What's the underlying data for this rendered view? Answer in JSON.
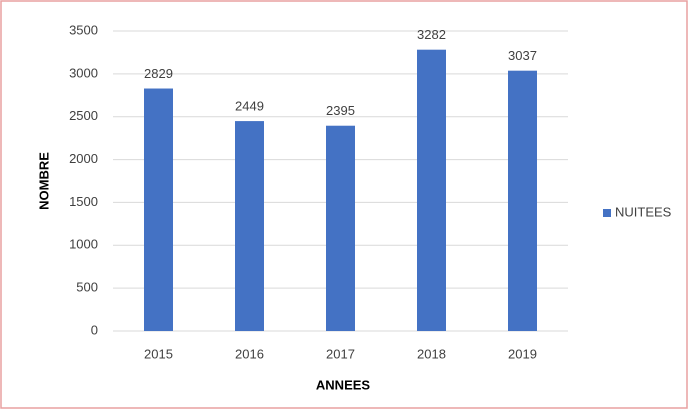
{
  "chart_data": {
    "type": "bar",
    "categories": [
      "2015",
      "2016",
      "2017",
      "2018",
      "2019"
    ],
    "series": [
      {
        "name": "NUITEES",
        "color": "#4472c4",
        "values": [
          2829,
          2449,
          2395,
          3282,
          3037
        ]
      }
    ],
    "x_label": "ANNEES",
    "y_label": "NOMBRE",
    "ylim": [
      0,
      3500
    ],
    "yticks": [
      0,
      500,
      1000,
      1500,
      2000,
      2500,
      3000,
      3500
    ],
    "grid": true,
    "legend": "right",
    "data_labels": true
  }
}
